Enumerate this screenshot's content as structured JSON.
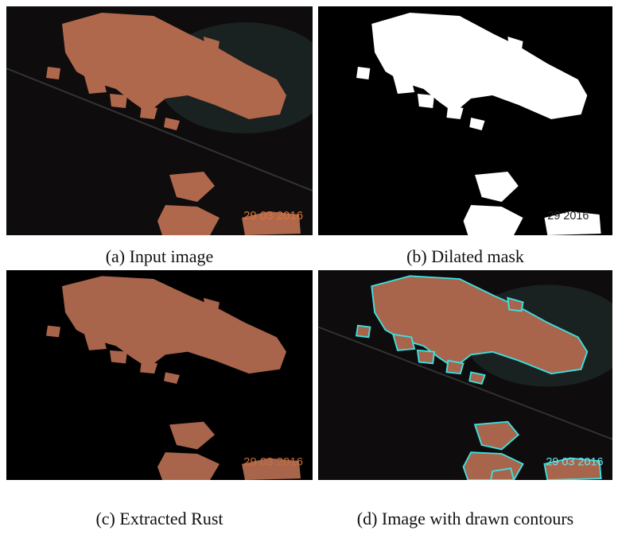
{
  "figure": {
    "panels": [
      {
        "caption": "(a) Input image",
        "stamp": "29 03 2016"
      },
      {
        "caption": "(b) Dilated mask",
        "stamp": "29 2016"
      },
      {
        "caption": "(c) Extracted Rust",
        "stamp": "29 03 2016"
      },
      {
        "caption": "(d) Image with drawn contours",
        "stamp": "29 03 2016"
      }
    ]
  }
}
